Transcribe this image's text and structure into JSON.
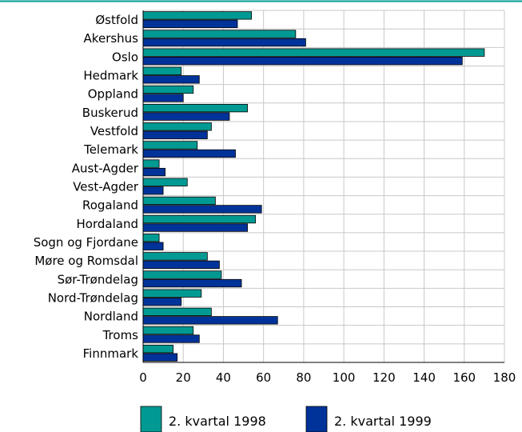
{
  "chart_data": {
    "type": "bar",
    "orientation": "horizontal",
    "categories": [
      "Østfold",
      "Akershus",
      "Oslo",
      "Hedmark",
      "Oppland",
      "Buskerud",
      "Vestfold",
      "Telemark",
      "Aust-Agder",
      "Vest-Agder",
      "Rogaland",
      "Hordaland",
      "Sogn og Fjordane",
      "Møre og Romsdal",
      "Sør-Trøndelag",
      "Nord-Trøndelag",
      "Nordland",
      "Troms",
      "Finnmark"
    ],
    "series": [
      {
        "name": "2. kvartal 1998",
        "color": "#009a93",
        "values": [
          54,
          76,
          170,
          19,
          25,
          52,
          34,
          27,
          8,
          22,
          36,
          56,
          8,
          32,
          39,
          29,
          34,
          25,
          15
        ]
      },
      {
        "name": "2. kvartal 1999",
        "color": "#003399",
        "values": [
          47,
          81,
          159,
          28,
          20,
          43,
          32,
          46,
          11,
          10,
          59,
          52,
          10,
          38,
          49,
          19,
          67,
          28,
          17
        ]
      }
    ],
    "xlim": [
      0,
      180
    ],
    "xticks": [
      "0",
      "20",
      "40",
      "60",
      "80",
      "100",
      "120",
      "140",
      "160",
      "180"
    ],
    "grid": true,
    "legend_position": "bottom",
    "title": "",
    "xlabel": "",
    "ylabel": ""
  },
  "colors": {
    "accent_line": "#009a93",
    "grid": "#c8c8c8"
  }
}
